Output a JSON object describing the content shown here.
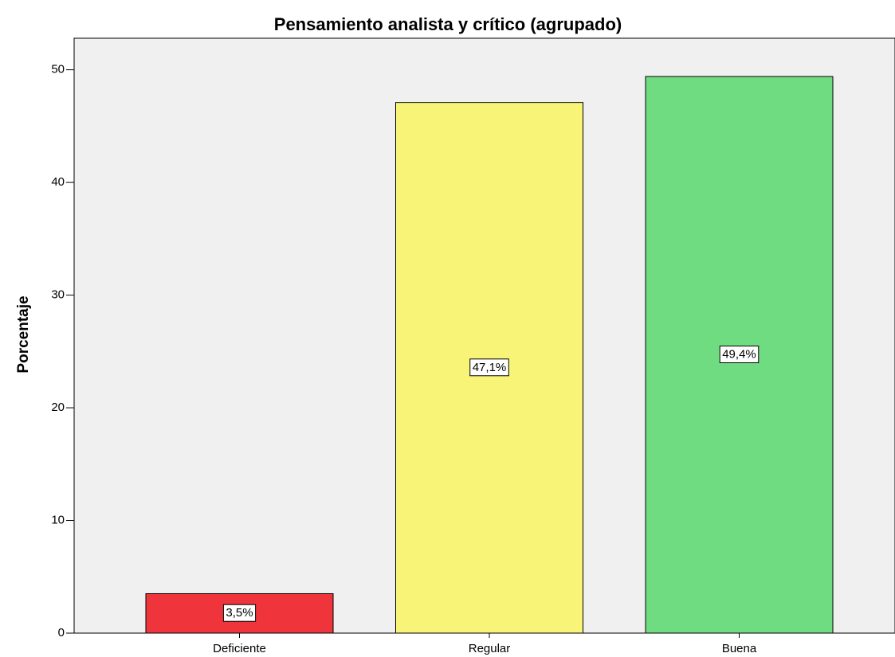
{
  "chart_data": {
    "type": "bar",
    "title": "Pensamiento analista y crítico (agrupado)",
    "y_label": "Porcentaje",
    "categories": [
      "Deficiente",
      "Regular",
      "Buena"
    ],
    "values": [
      3.5,
      47.1,
      49.4
    ],
    "value_labels": [
      "3,5%",
      "47,1%",
      "49,4%"
    ],
    "colors": [
      "#f0343c",
      "#f8f478",
      "#70dc82"
    ],
    "ylim": [
      0,
      52.8
    ],
    "yticks": [
      0,
      10,
      20,
      30,
      40,
      50
    ],
    "grid": false
  }
}
